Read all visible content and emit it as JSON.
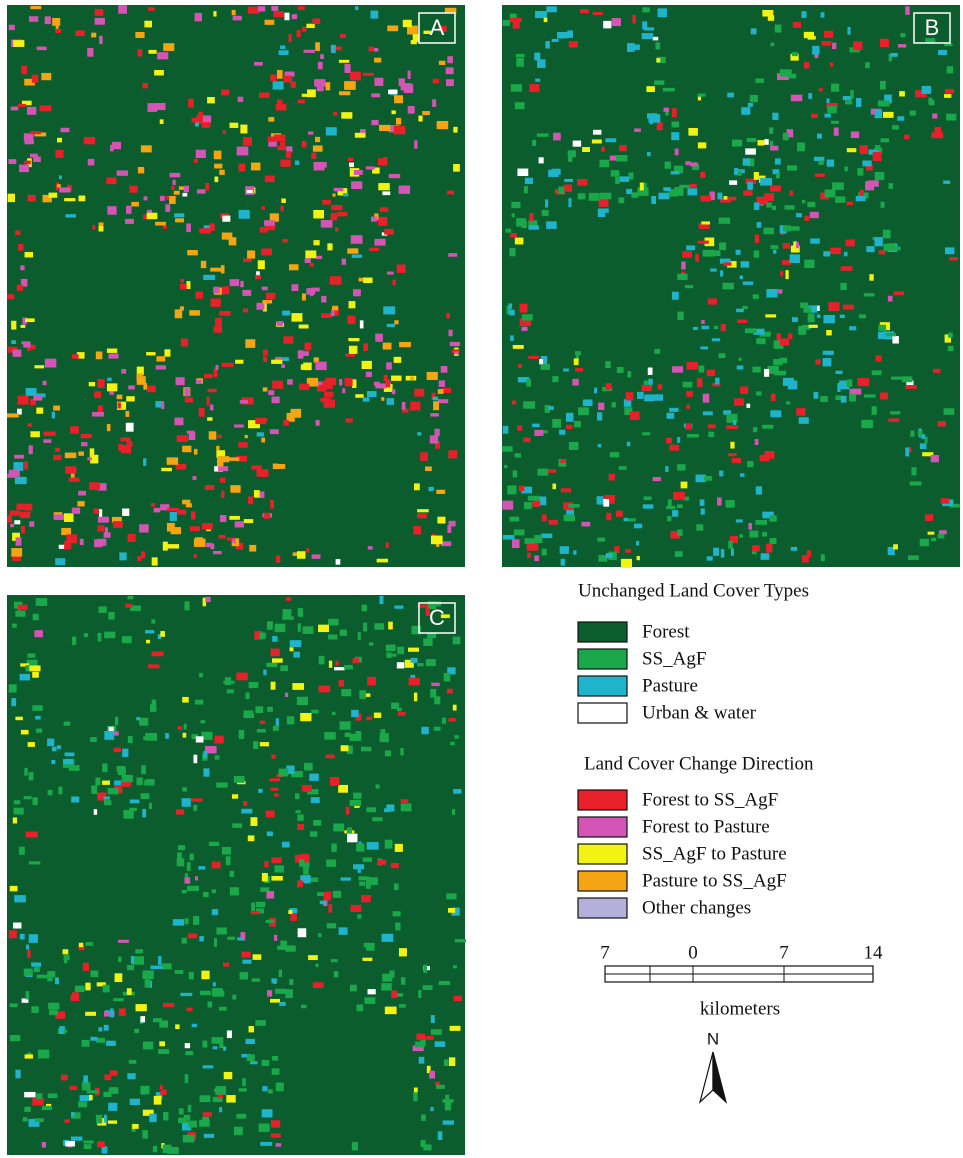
{
  "panels": [
    {
      "label": "A"
    },
    {
      "label": "B"
    },
    {
      "label": "C"
    }
  ],
  "legend": {
    "unchanged": {
      "title": "Unchanged Land Cover Types",
      "items": [
        {
          "label": "Forest",
          "color": "#0b5d2e"
        },
        {
          "label": "SS_AgF",
          "color": "#1aa84a"
        },
        {
          "label": "Pasture",
          "color": "#1fb3cc"
        },
        {
          "label": "Urban & water",
          "color": "#ffffff"
        }
      ]
    },
    "change": {
      "title": "Land Cover Change Direction",
      "items": [
        {
          "label": "Forest to SS_AgF",
          "color": "#e8202a"
        },
        {
          "label": "Forest to Pasture",
          "color": "#d455b5"
        },
        {
          "label": "SS_AgF to Pasture",
          "color": "#f2f213"
        },
        {
          "label": "Pasture to SS_AgF",
          "color": "#f5a511"
        },
        {
          "label": "Other changes",
          "color": "#b3b0db"
        }
      ]
    }
  },
  "scale": {
    "labels": [
      "7",
      "0",
      "7",
      "14"
    ],
    "unit": "kilometers"
  },
  "north": "N"
}
